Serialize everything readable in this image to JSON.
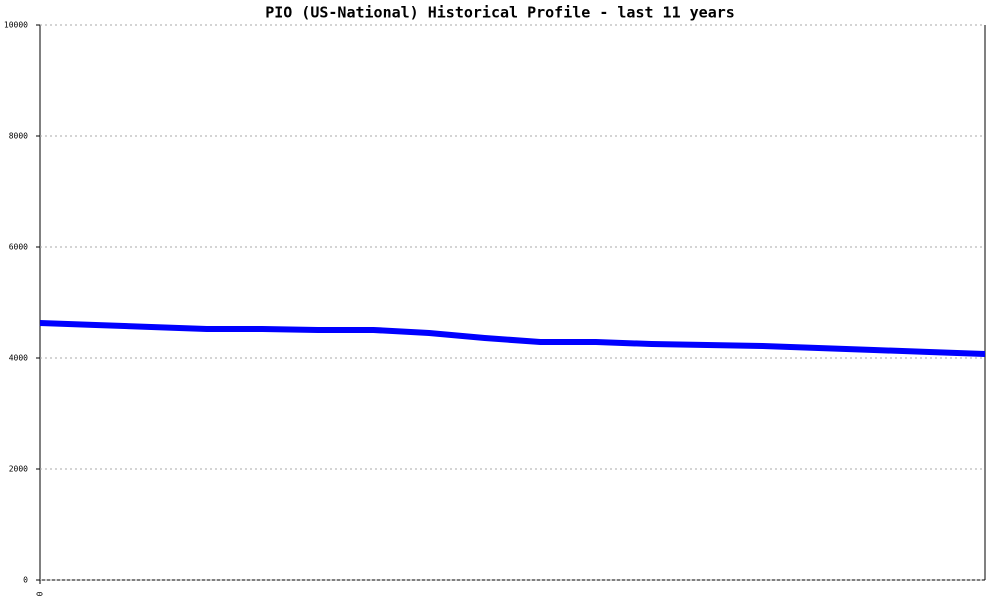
{
  "chart_data": {
    "type": "line",
    "title": "PIO (US-National) Historical Profile - last 11 years",
    "x": [
      0,
      1,
      2,
      3,
      4,
      5,
      6,
      7,
      8,
      9,
      10,
      11,
      12,
      13,
      14,
      15,
      16,
      17
    ],
    "values": [
      4631,
      4595,
      4559,
      4523,
      4523,
      4505,
      4505,
      4450,
      4360,
      4288,
      4288,
      4252,
      4234,
      4216,
      4180,
      4144,
      4108,
      4072
    ],
    "color": "#0000ff",
    "xlim": [
      0,
      17
    ],
    "xticks": [
      0
    ],
    "ylim": [
      0,
      10000
    ],
    "yticks": [
      0,
      2000,
      4000,
      6000,
      8000,
      10000
    ],
    "grid": true
  }
}
